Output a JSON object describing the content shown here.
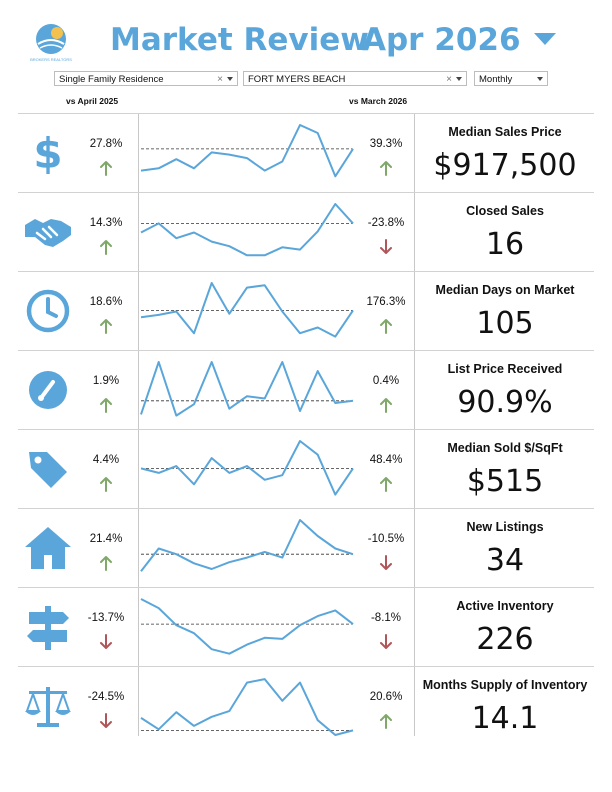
{
  "header": {
    "title": "Market Review",
    "period": "Apr 2026",
    "logo_text": "BROKERS REALTORS"
  },
  "filters": {
    "property_type": "Single Family Residence",
    "area": "FORT MYERS BEACH",
    "frequency": "Monthly"
  },
  "columns": {
    "yoy_label": "vs April 2025",
    "mom_label": "vs March 2026"
  },
  "colors": {
    "accent": "#5aa6da",
    "up": "#7fa86a",
    "down": "#b0565b",
    "line": "#5aa6da"
  },
  "metrics": [
    {
      "icon": "dollar-icon",
      "title": "Median Sales Price",
      "value": "$917,500",
      "yoy": "27.8%",
      "yoy_dir": "up",
      "mom": "39.3%",
      "mom_dir": "up",
      "spark": [
        0.2,
        0.24,
        0.4,
        0.24,
        0.52,
        0.48,
        0.42,
        0.2,
        0.36,
        1.0,
        0.86,
        0.1,
        0.58
      ],
      "baseline": 0.58
    },
    {
      "icon": "handshake-icon",
      "title": "Closed Sales",
      "value": "16",
      "yoy": "14.3%",
      "yoy_dir": "up",
      "mom": "-23.8%",
      "mom_dir": "down",
      "spark": [
        0.5,
        0.66,
        0.4,
        0.5,
        0.34,
        0.26,
        0.1,
        0.1,
        0.24,
        0.2,
        0.52,
        1.0,
        0.66
      ],
      "baseline": 0.66
    },
    {
      "icon": "clock-icon",
      "title": "Median Days on Market",
      "value": "105",
      "yoy": "18.6%",
      "yoy_dir": "up",
      "mom": "176.3%",
      "mom_dir": "up",
      "spark": [
        0.4,
        0.44,
        0.5,
        0.12,
        1.0,
        0.46,
        0.92,
        0.96,
        0.5,
        0.12,
        0.22,
        0.06,
        0.52
      ],
      "baseline": 0.52
    },
    {
      "icon": "gauge-icon",
      "title": "List Price Received",
      "value": "90.9%",
      "yoy": "1.9%",
      "yoy_dir": "up",
      "mom": "0.4%",
      "mom_dir": "up",
      "spark": [
        0.08,
        1.0,
        0.06,
        0.26,
        1.0,
        0.18,
        0.4,
        0.36,
        1.0,
        0.14,
        0.84,
        0.28,
        0.32
      ],
      "baseline": 0.32
    },
    {
      "icon": "tag-icon",
      "title": "Median Sold $/SqFt",
      "value": "$515",
      "yoy": "4.4%",
      "yoy_dir": "up",
      "mom": "48.4%",
      "mom_dir": "up",
      "spark": [
        0.52,
        0.44,
        0.56,
        0.24,
        0.7,
        0.44,
        0.56,
        0.32,
        0.4,
        1.0,
        0.76,
        0.06,
        0.52
      ],
      "baseline": 0.52
    },
    {
      "icon": "house-icon",
      "title": "New Listings",
      "value": "34",
      "yoy": "21.4%",
      "yoy_dir": "up",
      "mom": "-10.5%",
      "mom_dir": "down",
      "spark": [
        0.1,
        0.5,
        0.4,
        0.24,
        0.14,
        0.26,
        0.34,
        0.44,
        0.34,
        1.0,
        0.72,
        0.5,
        0.4
      ],
      "baseline": 0.4
    },
    {
      "icon": "signpost-icon",
      "title": "Active Inventory",
      "value": "226",
      "yoy": "-13.7%",
      "yoy_dir": "down",
      "mom": "-8.1%",
      "mom_dir": "down",
      "spark": [
        1.0,
        0.84,
        0.54,
        0.4,
        0.12,
        0.04,
        0.2,
        0.32,
        0.3,
        0.54,
        0.7,
        0.8,
        0.56
      ],
      "baseline": 0.56
    },
    {
      "icon": "scale-icon",
      "title": "Months Supply of Inventory",
      "value": "14.1",
      "yoy": "-24.5%",
      "yoy_dir": "down",
      "mom": "20.6%",
      "mom_dir": "up",
      "spark": [
        0.3,
        0.1,
        0.4,
        0.16,
        0.32,
        0.42,
        0.92,
        0.98,
        0.6,
        0.92,
        0.26,
        0.0,
        0.08
      ],
      "baseline": 0.08
    }
  ]
}
